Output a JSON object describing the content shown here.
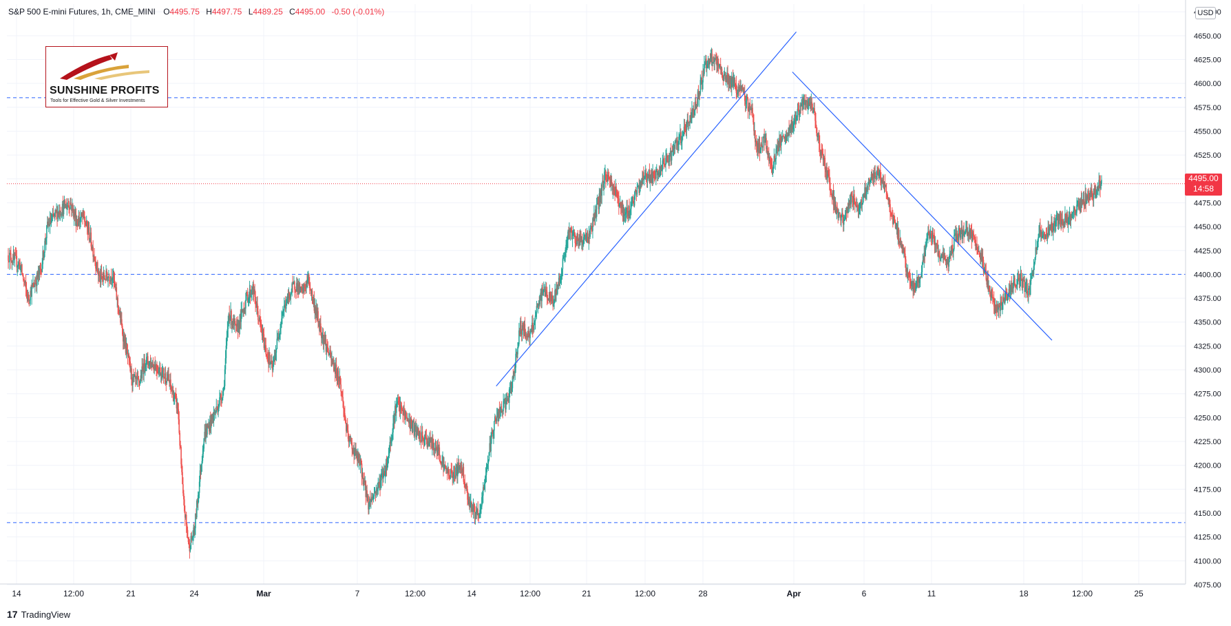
{
  "header": {
    "title": "S&P 500 E-mini Futures, 1h, CME_MINI",
    "open_label": "O",
    "open": "4495.75",
    "high_label": "H",
    "high": "4497.75",
    "low_label": "L",
    "low": "4489.25",
    "close_label": "C",
    "close": "4495.00",
    "change": "-0.50 (-0.01%)"
  },
  "logo": {
    "name": "SUNSHINE PROFITS",
    "tagline": "Tools for Effective Gold & Silver Investments"
  },
  "currency": "USD",
  "last_price": {
    "price": "4495.00",
    "countdown": "14:58"
  },
  "branding": {
    "mark": "17",
    "name": "TradingView"
  },
  "colors": {
    "up": "#26a69a",
    "down": "#ef5350",
    "trendline": "#2962ff",
    "level_line": "#2962ff",
    "last_price_line": "#f23645"
  },
  "chart_data": {
    "type": "candlestick",
    "title": "S&P 500 E-mini Futures, 1h, CME_MINI",
    "y_ticks": [
      4075,
      4100,
      4125,
      4150,
      4175,
      4200,
      4225,
      4250,
      4275,
      4300,
      4325,
      4350,
      4375,
      4400,
      4425,
      4450,
      4475,
      4500,
      4525,
      4550,
      4575,
      4600,
      4625,
      4650,
      4675
    ],
    "ylim": [
      4065,
      4685
    ],
    "x_ticks": [
      {
        "label": "14",
        "bold": false
      },
      {
        "label": "12:00",
        "bold": false
      },
      {
        "label": "21",
        "bold": false
      },
      {
        "label": "24",
        "bold": false
      },
      {
        "label": "Mar",
        "bold": true
      },
      {
        "label": "7",
        "bold": false
      },
      {
        "label": "12:00",
        "bold": false
      },
      {
        "label": "14",
        "bold": false
      },
      {
        "label": "12:00",
        "bold": false
      },
      {
        "label": "21",
        "bold": false
      },
      {
        "label": "12:00",
        "bold": false
      },
      {
        "label": "28",
        "bold": false
      },
      {
        "label": "Apr",
        "bold": true
      },
      {
        "label": "6",
        "bold": false
      },
      {
        "label": "11",
        "bold": false
      },
      {
        "label": "18",
        "bold": false
      },
      {
        "label": "12:00",
        "bold": false
      },
      {
        "label": "25",
        "bold": false
      }
    ],
    "horizontal_levels": [
      4585,
      4400,
      4140
    ],
    "last_price": 4495,
    "price_path": [
      [
        0,
        4420
      ],
      [
        18,
        4410
      ],
      [
        30,
        4375
      ],
      [
        50,
        4405
      ],
      [
        60,
        4450
      ],
      [
        75,
        4465
      ],
      [
        95,
        4475
      ],
      [
        105,
        4455
      ],
      [
        115,
        4460
      ],
      [
        125,
        4440
      ],
      [
        140,
        4395
      ],
      [
        160,
        4400
      ],
      [
        175,
        4340
      ],
      [
        190,
        4290
      ],
      [
        200,
        4285
      ],
      [
        210,
        4310
      ],
      [
        225,
        4305
      ],
      [
        245,
        4290
      ],
      [
        260,
        4260
      ],
      [
        268,
        4165
      ],
      [
        277,
        4115
      ],
      [
        285,
        4130
      ],
      [
        300,
        4230
      ],
      [
        320,
        4260
      ],
      [
        330,
        4280
      ],
      [
        338,
        4360
      ],
      [
        350,
        4340
      ],
      [
        365,
        4375
      ],
      [
        375,
        4385
      ],
      [
        385,
        4350
      ],
      [
        395,
        4320
      ],
      [
        405,
        4300
      ],
      [
        420,
        4360
      ],
      [
        432,
        4380
      ],
      [
        440,
        4390
      ],
      [
        450,
        4380
      ],
      [
        460,
        4395
      ],
      [
        468,
        4370
      ],
      [
        480,
        4340
      ],
      [
        495,
        4310
      ],
      [
        508,
        4290
      ],
      [
        520,
        4230
      ],
      [
        540,
        4200
      ],
      [
        552,
        4160
      ],
      [
        565,
        4175
      ],
      [
        580,
        4200
      ],
      [
        595,
        4265
      ],
      [
        610,
        4250
      ],
      [
        630,
        4230
      ],
      [
        645,
        4225
      ],
      [
        660,
        4215
      ],
      [
        670,
        4195
      ],
      [
        680,
        4190
      ],
      [
        695,
        4200
      ],
      [
        705,
        4165
      ],
      [
        715,
        4150
      ],
      [
        722,
        4145
      ],
      [
        735,
        4205
      ],
      [
        745,
        4245
      ],
      [
        758,
        4260
      ],
      [
        770,
        4275
      ],
      [
        785,
        4345
      ],
      [
        800,
        4335
      ],
      [
        820,
        4385
      ],
      [
        835,
        4370
      ],
      [
        845,
        4395
      ],
      [
        860,
        4445
      ],
      [
        875,
        4435
      ],
      [
        890,
        4440
      ],
      [
        905,
        4475
      ],
      [
        915,
        4505
      ],
      [
        925,
        4495
      ],
      [
        935,
        4480
      ],
      [
        945,
        4460
      ],
      [
        960,
        4480
      ],
      [
        975,
        4505
      ],
      [
        990,
        4500
      ],
      [
        1005,
        4515
      ],
      [
        1020,
        4530
      ],
      [
        1040,
        4555
      ],
      [
        1055,
        4580
      ],
      [
        1068,
        4620
      ],
      [
        1080,
        4625
      ],
      [
        1095,
        4610
      ],
      [
        1110,
        4600
      ],
      [
        1125,
        4590
      ],
      [
        1140,
        4570
      ],
      [
        1148,
        4530
      ],
      [
        1160,
        4540
      ],
      [
        1170,
        4510
      ],
      [
        1180,
        4535
      ],
      [
        1195,
        4545
      ],
      [
        1210,
        4570
      ],
      [
        1225,
        4580
      ],
      [
        1235,
        4570
      ],
      [
        1245,
        4530
      ],
      [
        1258,
        4500
      ],
      [
        1268,
        4470
      ],
      [
        1280,
        4455
      ],
      [
        1292,
        4480
      ],
      [
        1305,
        4470
      ],
      [
        1320,
        4500
      ],
      [
        1335,
        4505
      ],
      [
        1345,
        4490
      ],
      [
        1355,
        4460
      ],
      [
        1370,
        4430
      ],
      [
        1380,
        4395
      ],
      [
        1390,
        4385
      ],
      [
        1402,
        4410
      ],
      [
        1412,
        4445
      ],
      [
        1425,
        4425
      ],
      [
        1440,
        4410
      ],
      [
        1452,
        4440
      ],
      [
        1465,
        4445
      ],
      [
        1478,
        4440
      ],
      [
        1490,
        4420
      ],
      [
        1500,
        4395
      ],
      [
        1512,
        4365
      ],
      [
        1525,
        4370
      ],
      [
        1540,
        4390
      ],
      [
        1552,
        4395
      ],
      [
        1565,
        4380
      ],
      [
        1580,
        4445
      ],
      [
        1590,
        4440
      ],
      [
        1600,
        4450
      ],
      [
        1612,
        4460
      ],
      [
        1625,
        4455
      ],
      [
        1640,
        4470
      ],
      [
        1652,
        4480
      ],
      [
        1665,
        4485
      ],
      [
        1676,
        4497
      ]
    ],
    "trendlines": [
      {
        "x1": 748,
        "y1": 4283,
        "x2": 1208,
        "y2": 4654
      },
      {
        "x1": 1202,
        "y1": 4612,
        "x2": 1600,
        "y2": 4331
      }
    ]
  }
}
